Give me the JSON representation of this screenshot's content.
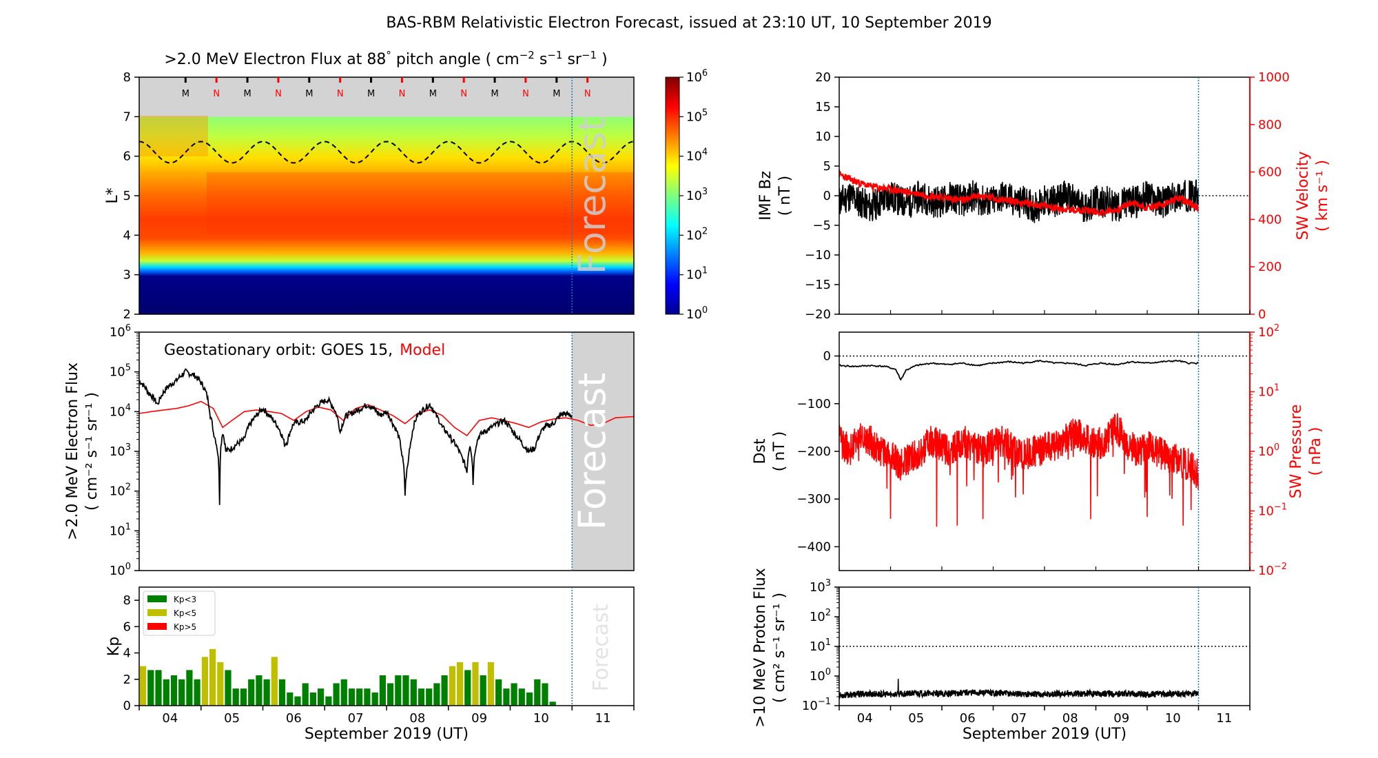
{
  "title": "BAS-RBM Relativistic Electron Forecast, issued at 23:10 UT, 10 September 2019",
  "colors": {
    "red": "#ff0000",
    "green": "#008000",
    "olive": "#bfbf00",
    "blue": "#1f77b4",
    "grey": "#d3d3d3"
  },
  "chart_data": [
    {
      "id": "lstar_flux",
      "type": "heatmap",
      "title_main": ">2.0 MeV Electron Flux at 88",
      "title_deg": "°",
      "title_rest": " pitch angle ( cm",
      "title_units": [
        [
          "−2",
          " s"
        ],
        [
          "−1",
          " sr"
        ],
        [
          "−1",
          " )"
        ]
      ],
      "ylabel": "L*",
      "ylim": [
        2,
        8
      ],
      "yticks": [
        "2",
        "3",
        "4",
        "5",
        "6",
        "7",
        "8"
      ],
      "xlim": [
        3.5,
        11.5
      ],
      "colorbar_ticks": [
        "0",
        "1",
        "2",
        "3",
        "4",
        "5",
        "6"
      ],
      "colorbar_base": "10",
      "mn_labels": [
        "M",
        "N",
        "M",
        "N",
        "M",
        "N",
        "M",
        "N",
        "M",
        "N",
        "M",
        "N",
        "M",
        "N"
      ],
      "mn_x": [
        4.25,
        4.75,
        5.25,
        5.75,
        6.25,
        6.75,
        7.25,
        7.75,
        8.25,
        8.75,
        9.25,
        9.75,
        10.25,
        10.75
      ],
      "forecast_label": "Forecast",
      "forecast_start": 10.5
    },
    {
      "id": "geo_flux",
      "type": "line",
      "annotation": "Geostationary orbit:   GOES 15,",
      "annotation_red": "Model",
      "ylabel_lines": [
        ">2.0 MeV Electron Flux",
        "( cm⁻² s⁻¹ sr⁻¹ )"
      ],
      "ylim": [
        1,
        1000000
      ],
      "yscale": "log",
      "ytick_exps": [
        "0",
        "1",
        "2",
        "3",
        "4",
        "5",
        "6"
      ],
      "forecast_label": "Forecast",
      "series": [
        {
          "name": "GOES 15",
          "x": [
            3.5,
            3.65,
            3.8,
            3.95,
            4.1,
            4.25,
            4.4,
            4.55,
            4.65,
            4.7,
            4.75,
            4.8,
            4.85,
            4.9,
            5.0,
            5.2,
            5.4,
            5.5,
            5.6,
            5.75,
            5.85,
            5.9,
            6.0,
            6.2,
            6.4,
            6.55,
            6.65,
            6.75,
            6.85,
            7.0,
            7.2,
            7.4,
            7.5,
            7.6,
            7.75,
            7.8,
            7.85,
            7.9,
            8.0,
            8.2,
            8.3,
            8.4,
            8.55,
            8.7,
            8.8,
            8.85,
            8.9,
            8.95,
            9.0,
            9.2,
            9.4,
            9.55,
            9.7,
            9.8,
            9.9,
            10.05,
            10.2,
            10.35,
            10.5
          ],
          "y": [
            60000,
            30000,
            15000,
            40000,
            60000,
            100000,
            80000,
            40000,
            8000,
            3000,
            1500,
            50,
            3000,
            1000,
            1200,
            2000,
            8000,
            12000,
            8000,
            4000,
            1500,
            1800,
            5000,
            6000,
            15000,
            20000,
            12000,
            3000,
            8000,
            10000,
            15000,
            8000,
            10000,
            5000,
            800,
            80,
            500,
            2000,
            8000,
            15000,
            8000,
            4000,
            2000,
            800,
            300,
            1500,
            150,
            1500,
            2500,
            4000,
            6000,
            3000,
            1500,
            1000,
            1200,
            4000,
            5000,
            9000,
            8000
          ]
        },
        {
          "name": "Model",
          "x": [
            3.5,
            3.7,
            3.9,
            4.1,
            4.3,
            4.5,
            4.7,
            4.85,
            5.0,
            5.2,
            5.4,
            5.6,
            5.8,
            6.0,
            6.2,
            6.4,
            6.6,
            6.8,
            7.0,
            7.2,
            7.4,
            7.6,
            7.8,
            8.0,
            8.2,
            8.4,
            8.6,
            8.8,
            9.0,
            9.2,
            9.4,
            9.6,
            9.8,
            10.0,
            10.2,
            10.4,
            10.6,
            10.8,
            11.0,
            11.2,
            11.5
          ],
          "y": [
            9000,
            10000,
            11000,
            12000,
            14000,
            18000,
            12000,
            4000,
            6000,
            10000,
            11000,
            10000,
            9000,
            6000,
            10000,
            13000,
            11000,
            6000,
            12000,
            15000,
            11000,
            8000,
            5000,
            9000,
            11000,
            8000,
            4000,
            2500,
            6000,
            7000,
            6000,
            5000,
            4000,
            5500,
            6500,
            7000,
            6000,
            4500,
            5000,
            7000,
            7500
          ]
        }
      ]
    },
    {
      "id": "kp",
      "type": "bar",
      "ylabel": "Kp",
      "ylim": [
        0,
        9
      ],
      "yticks": [
        "0",
        "2",
        "4",
        "6",
        "8"
      ],
      "xlabel": "September 2019 (UT)",
      "xticks": [
        "04",
        "05",
        "06",
        "07",
        "08",
        "09",
        "10",
        "11"
      ],
      "legend": [
        "Kp<3",
        "Kp<5",
        "Kp>5"
      ],
      "forecast_label": "Forecast",
      "values": [
        3.0,
        2.7,
        2.7,
        2.0,
        2.3,
        2.0,
        2.7,
        2.0,
        3.7,
        4.3,
        3.3,
        2.7,
        1.3,
        1.3,
        2.0,
        2.3,
        2.0,
        3.7,
        2.0,
        1.0,
        0.7,
        1.7,
        1.0,
        1.3,
        0.7,
        1.7,
        2.0,
        1.3,
        1.3,
        1.3,
        1.0,
        2.3,
        1.7,
        2.3,
        2.3,
        2.0,
        1.3,
        1.3,
        1.7,
        2.3,
        3.0,
        3.3,
        2.7,
        3.3,
        2.3,
        3.3,
        2.0,
        1.3,
        1.7,
        1.3,
        1.0,
        2.0,
        1.7,
        0.3
      ]
    },
    {
      "id": "imf_sw",
      "type": "line",
      "ylabel_lines": [
        "IMF Bz",
        "( nT )"
      ],
      "ylabel_right_lines": [
        "SW Velocity",
        "( km s⁻¹ )"
      ],
      "ylim": [
        -20,
        20
      ],
      "yticks": [
        "−20",
        "−15",
        "−10",
        "−5",
        "0",
        "5",
        "10",
        "15",
        "20"
      ],
      "ylim_right": [
        0,
        1000
      ],
      "yticks_right": [
        "0",
        "200",
        "400",
        "600",
        "800",
        "1000"
      ],
      "series": [
        {
          "name": "IMF Bz",
          "x": [
            3.5,
            3.7,
            3.9,
            4.1,
            4.3,
            4.5,
            4.7,
            4.9,
            5.1,
            5.3,
            5.5,
            5.7,
            5.9,
            6.1,
            6.3,
            6.5,
            6.7,
            6.9,
            7.1,
            7.3,
            7.5,
            7.7,
            7.9,
            8.1,
            8.3,
            8.5,
            8.7,
            8.9,
            9.1,
            9.3,
            9.5,
            9.7,
            9.9,
            10.1,
            10.3,
            10.5
          ],
          "y": [
            -1,
            0,
            -1,
            -2,
            -1,
            0,
            -1,
            -1,
            0,
            -1,
            -1,
            0,
            -1,
            0,
            -1,
            -1,
            0,
            -1,
            -1,
            -2,
            -1,
            -1,
            0,
            -1,
            -2,
            -1,
            -1,
            -2,
            -1,
            -1,
            0,
            -1,
            -1,
            0,
            0,
            0
          ]
        },
        {
          "name": "SW Velocity",
          "x": [
            3.5,
            3.8,
            4.1,
            4.4,
            4.7,
            5.0,
            5.3,
            5.6,
            5.9,
            6.2,
            6.5,
            6.8,
            7.1,
            7.4,
            7.7,
            8.0,
            8.3,
            8.6,
            8.9,
            9.2,
            9.5,
            9.8,
            10.1,
            10.3,
            10.5
          ],
          "y": [
            590,
            560,
            540,
            530,
            520,
            510,
            500,
            490,
            480,
            500,
            490,
            480,
            470,
            460,
            450,
            440,
            440,
            430,
            440,
            470,
            450,
            460,
            490,
            470,
            450
          ]
        }
      ]
    },
    {
      "id": "dst_pressure",
      "type": "line",
      "ylabel_lines": [
        "Dst",
        "( nT )"
      ],
      "ylabel_right_lines": [
        "SW Pressure",
        "( nPa )"
      ],
      "ylim": [
        -450,
        50
      ],
      "yticks": [
        "−400",
        "−300",
        "−200",
        "−100",
        "0"
      ],
      "ylim_right": [
        0.01,
        100
      ],
      "ytick_right_exps": [
        "−2",
        "−1",
        "0",
        "1",
        "2"
      ],
      "series": [
        {
          "name": "Dst",
          "x": [
            3.5,
            3.8,
            4.1,
            4.4,
            4.6,
            4.7,
            4.8,
            5.0,
            5.3,
            5.6,
            5.9,
            6.2,
            6.5,
            6.8,
            7.1,
            7.4,
            7.7,
            8.0,
            8.3,
            8.6,
            8.9,
            9.2,
            9.5,
            9.8,
            10.1,
            10.3,
            10.5
          ],
          "y": [
            -20,
            -22,
            -20,
            -22,
            -28,
            -50,
            -30,
            -20,
            -15,
            -18,
            -15,
            -20,
            -15,
            -12,
            -15,
            -10,
            -15,
            -15,
            -20,
            -15,
            -18,
            -12,
            -15,
            -12,
            -10,
            -15,
            -15
          ]
        },
        {
          "name": "SW Pressure",
          "x": [
            3.5,
            3.7,
            3.9,
            4.1,
            4.3,
            4.5,
            4.7,
            4.9,
            5.1,
            5.3,
            5.5,
            5.7,
            5.9,
            6.1,
            6.3,
            6.5,
            6.7,
            6.9,
            7.1,
            7.3,
            7.5,
            7.7,
            7.9,
            8.1,
            8.3,
            8.5,
            8.7,
            8.9,
            9.1,
            9.3,
            9.5,
            9.7,
            9.9,
            10.1,
            10.3,
            10.5
          ],
          "y": [
            1.5,
            1.0,
            2.0,
            1.5,
            1.0,
            0.8,
            0.6,
            0.8,
            1.0,
            1.5,
            1.2,
            1.0,
            1.5,
            1.2,
            1.0,
            1.3,
            1.5,
            1.0,
            0.9,
            1.0,
            1.1,
            1.3,
            1.5,
            2.0,
            1.6,
            1.3,
            1.5,
            2.5,
            1.3,
            1.0,
            1.2,
            1.0,
            0.8,
            0.7,
            0.6,
            0.4
          ]
        }
      ]
    },
    {
      "id": "proton",
      "type": "line",
      "ylabel_lines": [
        ">10 MeV Proton Flux",
        "( cm² s⁻¹ sr⁻¹ )"
      ],
      "ylim": [
        0.1,
        1000
      ],
      "yscale": "log",
      "ytick_exps": [
        "−1",
        "0",
        "1",
        "2",
        "3"
      ],
      "xlabel": "September 2019 (UT)",
      "xticks": [
        "04",
        "05",
        "06",
        "07",
        "08",
        "09",
        "10",
        "11"
      ],
      "threshold": 10,
      "series": [
        {
          "name": ">10 MeV Proton Flux",
          "x": [
            3.5,
            4.0,
            4.5,
            5.0,
            5.5,
            6.0,
            6.5,
            7.0,
            7.5,
            8.0,
            8.5,
            9.0,
            9.5,
            10.0,
            10.5
          ],
          "y": [
            0.22,
            0.25,
            0.24,
            0.26,
            0.25,
            0.28,
            0.27,
            0.25,
            0.24,
            0.25,
            0.26,
            0.25,
            0.24,
            0.25,
            0.26
          ]
        }
      ]
    }
  ]
}
